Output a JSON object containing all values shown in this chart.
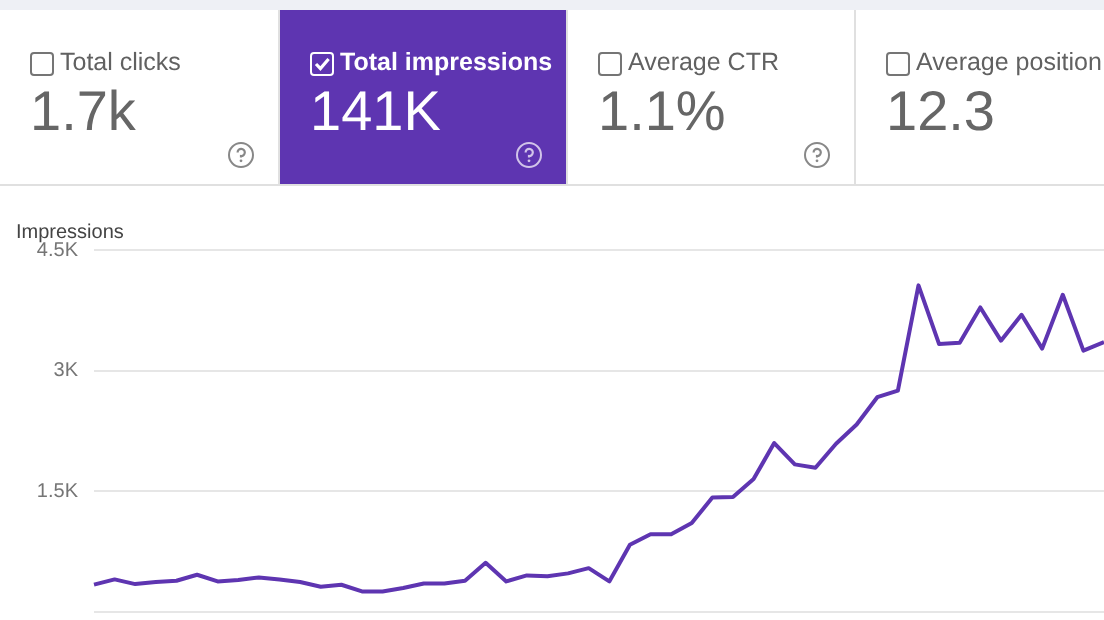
{
  "chart_data": [
    {
      "type": "other",
      "categories": [
        "Total clicks",
        "Total impressions",
        "Average CTR",
        "Average position"
      ],
      "value_labels": [
        "1.7k",
        "141K",
        "1.1%",
        "12.3"
      ],
      "colors": [
        "#ffffff",
        "#5e35b1",
        "#ffffff",
        "#ffffff"
      ]
    },
    {
      "type": "line",
      "ylabel": "Impressions",
      "categories": [
        null,
        null,
        null,
        null,
        null,
        null,
        null,
        null,
        null,
        null,
        null,
        null,
        null,
        null,
        null,
        null,
        null,
        null,
        null,
        null,
        null,
        null,
        null,
        null,
        null,
        null,
        null,
        null,
        null,
        null,
        null,
        null,
        null,
        null,
        null,
        null,
        null,
        null,
        null,
        null,
        null,
        null,
        null,
        null,
        null,
        null,
        null,
        null,
        null,
        null
      ],
      "series": [
        {
          "color": "#5e35b1",
          "values": [
            340,
            405,
            347,
            372,
            389,
            463,
            380,
            397,
            430,
            405,
            372,
            314,
            339,
            256,
            256,
            298,
            355,
            355,
            389,
            612,
            380,
            455,
            445,
            480,
            545,
            380,
            835,
            967,
            967,
            1107,
            1422,
            1430,
            1653,
            2100,
            1835,
            1794,
            2092,
            2331,
            2670,
            2753,
            4060,
            3331,
            3348,
            3786,
            3373,
            3695,
            3274,
            3943,
            3249,
            3356
          ]
        }
      ],
      "ylim": [
        0,
        4500
      ],
      "yticks": [
        {
          "value": 0,
          "label": null
        },
        {
          "value": 1500,
          "label": "1.5K"
        },
        {
          "value": 3000,
          "label": "3K"
        },
        {
          "value": 4500,
          "label": "4.5K"
        }
      ],
      "grid": "y",
      "legend": false,
      "marker": "none",
      "line_style": "solid",
      "tick_labels": "y"
    }
  ]
}
